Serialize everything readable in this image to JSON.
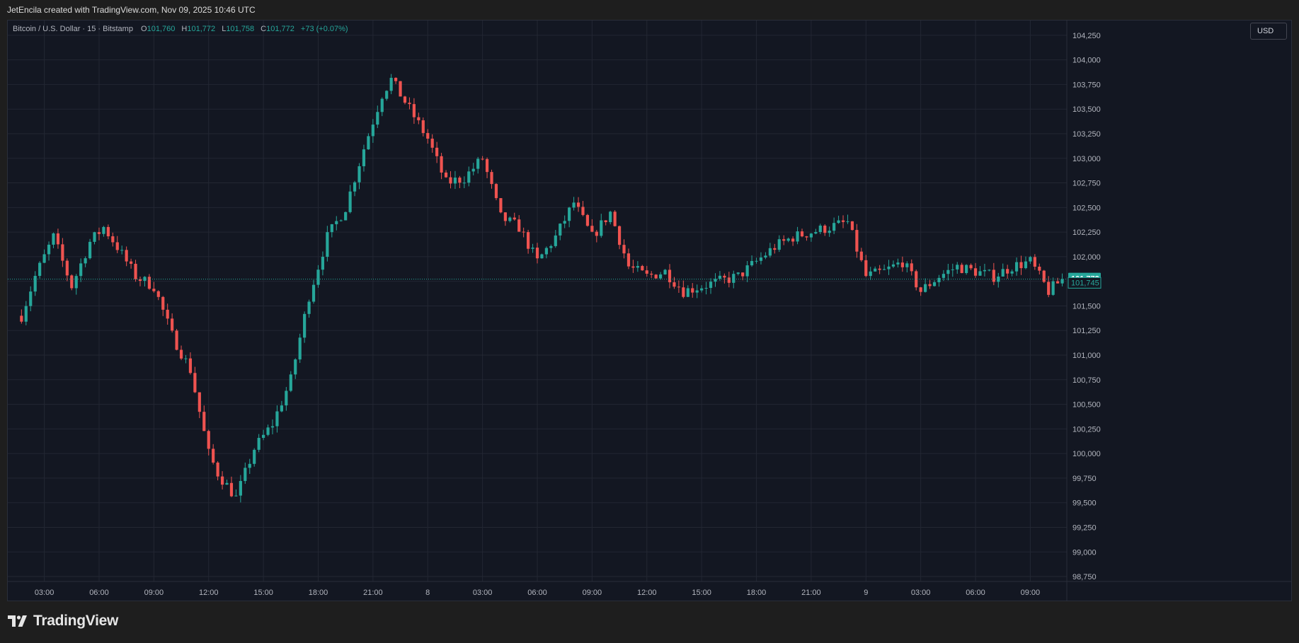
{
  "header": {
    "credit": "JetEncila created with TradingView.com, Nov 09, 2025 10:46 UTC"
  },
  "legend": {
    "symbol": "Bitcoin / U.S. Dollar · 15 · Bitstamp",
    "o_label": "O",
    "o_value": "101,760",
    "h_label": "H",
    "h_value": "101,772",
    "l_label": "L",
    "l_value": "101,758",
    "c_label": "C",
    "c_value": "101,772",
    "change": "+73 (+0.07%)"
  },
  "currency_button": "USD",
  "footer": {
    "brand": "TradingView"
  },
  "colors": {
    "up": "#26a69a",
    "down": "#ef5350",
    "background": "#131722",
    "grid": "#232733"
  },
  "chart_data": {
    "type": "candlestick",
    "timeframe": "15",
    "ylim": [
      98700,
      104400
    ],
    "y_ticks": [
      "104,250",
      "104,000",
      "103,750",
      "103,500",
      "103,250",
      "103,000",
      "102,750",
      "102,500",
      "102,250",
      "102,000",
      "101,750",
      "101,500",
      "101,250",
      "101,000",
      "100,750",
      "100,500",
      "100,250",
      "100,000",
      "99,750",
      "99,500",
      "99,250",
      "99,000",
      "98,750"
    ],
    "y_tick_values": [
      104250,
      104000,
      103750,
      103500,
      103250,
      103000,
      102750,
      102500,
      102250,
      102000,
      101750,
      101500,
      101250,
      101000,
      100750,
      100500,
      100250,
      100000,
      99750,
      99500,
      99250,
      99000,
      98750
    ],
    "x_ticks": [
      "03:00",
      "06:00",
      "09:00",
      "12:00",
      "15:00",
      "18:00",
      "21:00",
      "8",
      "03:00",
      "06:00",
      "09:00",
      "12:00",
      "15:00",
      "18:00",
      "21:00",
      "9",
      "03:00",
      "06:00",
      "09:00"
    ],
    "x_tick_hours": [
      3,
      6,
      9,
      12,
      15,
      18,
      21,
      24,
      27,
      30,
      33,
      36,
      39,
      42,
      45,
      48,
      51,
      54,
      57
    ],
    "start_hour": 1.75,
    "end_hour": 58.75,
    "current_price": 101772,
    "current_price_label": "101,772",
    "secondary_price": 101745,
    "secondary_price_label": "101,745",
    "anchor_hours": [
      1.75,
      2.5,
      3.5,
      4.5,
      5.5,
      6.25,
      7,
      8,
      9,
      10,
      11,
      12,
      12.5,
      13.5,
      14.5,
      15.5,
      16.5,
      17.5,
      18.5,
      19.5,
      20.5,
      21.5,
      22,
      22.5,
      23,
      24,
      25,
      26,
      27,
      28,
      29,
      30,
      31,
      32,
      33,
      34,
      35,
      36,
      37,
      38,
      39,
      40,
      41,
      42,
      43,
      44,
      45,
      46,
      47,
      48,
      49,
      50,
      51,
      52,
      53,
      54,
      55,
      56,
      57,
      58,
      58.75
    ],
    "anchor_prices": [
      101400,
      101800,
      102200,
      101700,
      102150,
      102300,
      102100,
      101800,
      101700,
      101200,
      100850,
      100000,
      99800,
      99550,
      100050,
      100300,
      100750,
      101600,
      102200,
      102500,
      103100,
      103650,
      103800,
      103650,
      103500,
      103200,
      102750,
      102800,
      103000,
      102400,
      102300,
      101950,
      102200,
      102550,
      102200,
      102450,
      101900,
      101800,
      101850,
      101650,
      101700,
      101750,
      101800,
      101950,
      102100,
      102200,
      102250,
      102300,
      102350,
      101800,
      101850,
      101950,
      101650,
      101800,
      101900,
      101850,
      101800,
      101900,
      101950,
      101650,
      101772
    ]
  }
}
